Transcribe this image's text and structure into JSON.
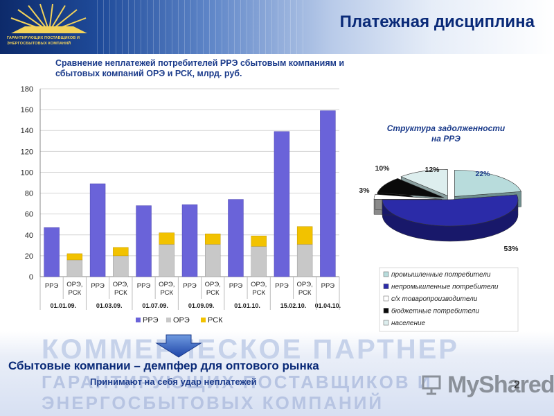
{
  "page": {
    "title": "Платежная дисциплина",
    "logo_text_line1": "ГАРАНТИРУЮЩИХ ПОСТАВЩИКОВ И",
    "logo_text_line2": "ЭНЕРГОСБЫТОВЫХ КОМПАНИЙ",
    "bottom_title": "Сбытовые компании – демпфер для оптового рынка",
    "bottom_subtitle": "Принимают на себя удар неплатежей",
    "watermark_line1": "КОММЕРЧЕСКОЕ ПАРТНЕР",
    "watermark_line2": "ГАРАНТИРУЮЩИХ ПОСТАВЩИКОВ И",
    "watermark_line3": "ЭНЕРГОСБЫТОВЫХ КОМПАНИЙ",
    "logo_watermark": "MyShared",
    "page_number": "2",
    "colors": {
      "title": "#0a2a78",
      "bar_rre": "#6a63d9",
      "bar_ore": "#c8c8c8",
      "bar_rsk": "#f2c200",
      "pie_industrial": "#b8dcdc",
      "pie_nonindustrial": "#2b2ba8",
      "pie_agri": "#ffffff",
      "pie_budget": "#0a0a0a",
      "pie_population": "#ddeeee"
    }
  },
  "chart_data": [
    {
      "type": "bar",
      "title": "Сравнение неплатежей потребителей РРЭ сбытовым компаниям и сбытовых компаний ОРЭ и РСК, млрд. руб.",
      "ylim": [
        0,
        180
      ],
      "yticks": [
        "0",
        "20",
        "40",
        "60",
        "80",
        "100",
        "120",
        "140",
        "160",
        "180"
      ],
      "legend": [
        "РРЭ",
        "ОРЭ",
        "РСК"
      ],
      "legend_position": "bottom",
      "groups": [
        {
          "date": "01.01.09.",
          "bars": [
            {
              "label": "РРЭ",
              "rre": 47
            },
            {
              "label": "ОРЭ, РСК",
              "ore": 16,
              "rsk": 6
            }
          ]
        },
        {
          "date": "01.03.09.",
          "bars": [
            {
              "label": "РРЭ",
              "rre": 89
            },
            {
              "label": "ОРЭ, РСК",
              "ore": 20,
              "rsk": 8
            }
          ]
        },
        {
          "date": "01.07.09.",
          "bars": [
            {
              "label": "РРЭ",
              "rre": 68
            },
            {
              "label": "ОРЭ, РСК",
              "ore": 31,
              "rsk": 11
            }
          ]
        },
        {
          "date": "01.09.09.",
          "bars": [
            {
              "label": "РРЭ",
              "rre": 69
            },
            {
              "label": "ОРЭ, РСК",
              "ore": 31,
              "rsk": 10
            }
          ]
        },
        {
          "date": "01.01.10.",
          "bars": [
            {
              "label": "РРЭ",
              "rre": 74
            },
            {
              "label": "ОРЭ, РСК",
              "ore": 29,
              "rsk": 10
            }
          ]
        },
        {
          "date": "15.02.10.",
          "bars": [
            {
              "label": "РРЭ",
              "rre": 139
            },
            {
              "label": "ОРЭ, РСК",
              "ore": 31,
              "rsk": 17
            }
          ]
        },
        {
          "date": "01.04.10.",
          "bars": [
            {
              "label": "РРЭ",
              "rre": 159
            }
          ]
        }
      ]
    },
    {
      "type": "pie",
      "title": "Структура задолженности на РРЭ",
      "legend_position": "bottom",
      "slices": [
        {
          "name": "промышленные потребители",
          "value": 22,
          "label": "22%"
        },
        {
          "name": "непромышленные потребители",
          "value": 53,
          "label": "53%"
        },
        {
          "name": "с/х товаропроизводители",
          "value": 3,
          "label": "3%"
        },
        {
          "name": "бюджетные потребители",
          "value": 10,
          "label": "10%"
        },
        {
          "name": "население",
          "value": 12,
          "label": "12%"
        }
      ]
    }
  ]
}
